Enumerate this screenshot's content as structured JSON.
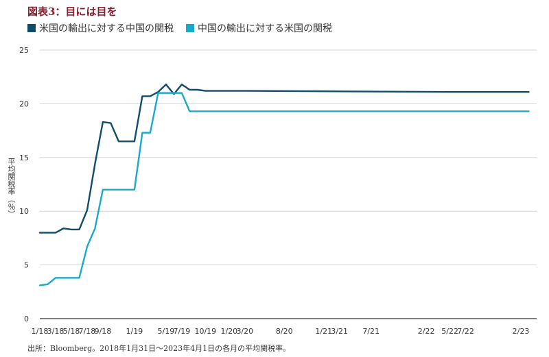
{
  "title": "図表3：目には目を",
  "colors": {
    "us_exports": "#0e4d6b",
    "china_exports": "#18aac6",
    "grid": "#d4d4d4",
    "axis": "#333333"
  },
  "source": "出所：Bloomberg。2018年1月31日〜2023年4月1日の各月の平均関税率。",
  "chart_data": {
    "type": "line",
    "title": "図表3：目には目を",
    "ylabel": "平均関税率（％）",
    "xlabel": "",
    "ylim": [
      0,
      25
    ],
    "yticks": [
      0,
      5,
      10,
      15,
      20,
      25
    ],
    "grid": true,
    "legend_position": "top-left",
    "xlim": [
      "2018-01",
      "2023-04"
    ],
    "xticks": [
      "2018-01",
      "2018-03",
      "2018-05",
      "2018-07",
      "2018-09",
      "2019-01",
      "2019-05",
      "2019-07",
      "2019-10",
      "2020-01",
      "2020-03",
      "2020-08",
      "2021-01",
      "2021-03",
      "2021-07",
      "2022-02",
      "2022-05",
      "2022-07",
      "2023-02"
    ],
    "xtick_labels": [
      "1/18",
      "3/18",
      "5/18",
      "7/18",
      "9/18",
      "1/19",
      "5/19",
      "7/19",
      "10/19",
      "1/20",
      "3/20",
      "8/20",
      "1/21",
      "3/21",
      "7/21",
      "2/22",
      "5/22",
      "7/22",
      "2/23"
    ],
    "series": [
      {
        "name": "米国の輸出に対する中国の関税",
        "x": [
          "2018-01",
          "2018-02",
          "2018-03",
          "2018-04",
          "2018-05",
          "2018-06",
          "2018-07",
          "2018-08",
          "2018-09",
          "2018-10",
          "2018-11",
          "2018-12",
          "2019-01",
          "2019-02",
          "2019-03",
          "2019-04",
          "2019-05",
          "2019-06",
          "2019-07",
          "2019-08",
          "2019-09",
          "2019-10",
          "2019-11",
          "2019-12",
          "2020-01",
          "2020-02",
          "2020-03",
          "2022-05",
          "2023-03"
        ],
        "values": [
          8.0,
          8.0,
          8.0,
          8.4,
          8.3,
          8.3,
          10.1,
          14.4,
          18.3,
          18.2,
          16.5,
          16.5,
          16.5,
          20.7,
          20.7,
          21.1,
          21.8,
          20.9,
          21.8,
          21.3,
          21.3,
          21.2,
          21.2,
          21.2,
          21.2,
          21.2,
          21.2,
          21.1,
          21.1
        ]
      },
      {
        "name": "中国の輸出に対する米国の関税",
        "x": [
          "2018-01",
          "2018-02",
          "2018-03",
          "2018-04",
          "2018-05",
          "2018-06",
          "2018-07",
          "2018-08",
          "2018-09",
          "2018-10",
          "2018-11",
          "2018-12",
          "2019-01",
          "2019-02",
          "2019-03",
          "2019-04",
          "2019-05",
          "2019-06",
          "2019-07",
          "2019-08",
          "2023-03"
        ],
        "values": [
          3.1,
          3.2,
          3.8,
          3.8,
          3.8,
          3.8,
          6.7,
          8.4,
          12.0,
          12.0,
          12.0,
          12.0,
          12.0,
          17.3,
          17.3,
          21.0,
          21.0,
          21.0,
          21.0,
          19.3,
          19.3
        ]
      }
    ]
  }
}
